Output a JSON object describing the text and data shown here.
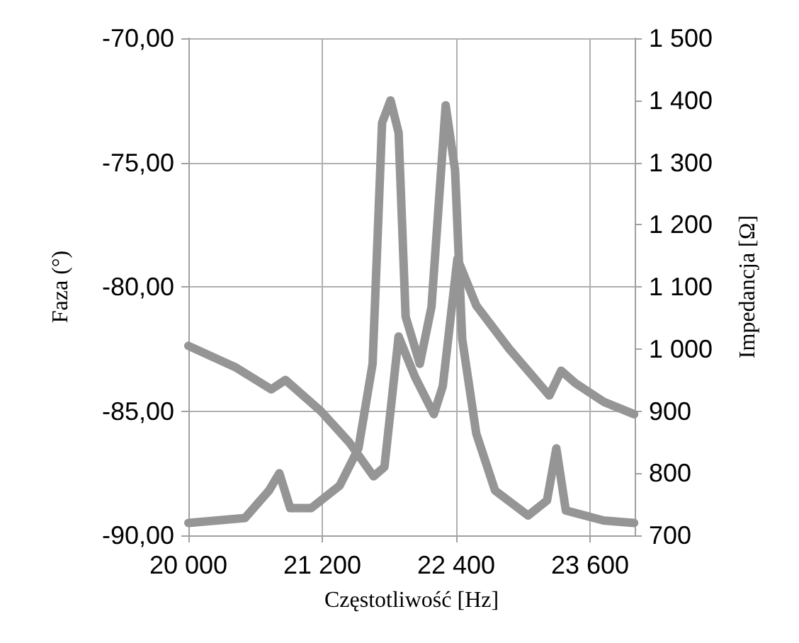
{
  "chart_data": {
    "type": "line",
    "xlabel": "Częstotliwość [Hz]",
    "ylabel": "Faza (°)",
    "y2label": "Impedancja [Ω]",
    "xlim": [
      20000,
      24000
    ],
    "xticks": [
      {
        "value": 20000,
        "label": "20 000"
      },
      {
        "value": 21200,
        "label": "21 200"
      },
      {
        "value": 22400,
        "label": "22 400"
      },
      {
        "value": 23600,
        "label": "23 600"
      }
    ],
    "ylim": [
      -90,
      -70
    ],
    "yticks": [
      {
        "value": -90,
        "label": "-90,00"
      },
      {
        "value": -85,
        "label": "-85,00"
      },
      {
        "value": -80,
        "label": "-80,00"
      },
      {
        "value": -75,
        "label": "-75,00"
      },
      {
        "value": -70,
        "label": "-70,00"
      }
    ],
    "y2lim": [
      700,
      1500
    ],
    "y2ticks": [
      {
        "value": 700,
        "label": "700"
      },
      {
        "value": 800,
        "label": "800"
      },
      {
        "value": 900,
        "label": "900"
      },
      {
        "value": 1000,
        "label": "1 000"
      },
      {
        "value": 1100,
        "label": "1 100"
      },
      {
        "value": 1200,
        "label": "1 200"
      },
      {
        "value": 1300,
        "label": "1 300"
      },
      {
        "value": 1400,
        "label": "1 400"
      },
      {
        "value": 1500,
        "label": "1 500"
      }
    ],
    "grid": true,
    "marker": "none",
    "line_style": "solid",
    "series": [
      {
        "color": "#959595",
        "x": [
          20000,
          20507,
          20722,
          20815,
          20912,
          21102,
          21356,
          21524,
          21651,
          21736,
          21812,
          21884,
          21947,
          22074,
          22179,
          22306,
          22390,
          22454,
          22580,
          22749,
          23045,
          23214,
          23298,
          23383,
          23721,
          23995
        ],
        "values": [
          -89.5,
          -89.3,
          -88.2,
          -87.5,
          -88.9,
          -88.9,
          -88.0,
          -86.5,
          -83.1,
          -73.4,
          -72.5,
          -73.8,
          -81.2,
          -83.1,
          -80.8,
          -72.7,
          -75.3,
          -82.1,
          -85.9,
          -88.2,
          -89.2,
          -88.6,
          -86.5,
          -89.0,
          -89.4,
          -89.5
        ]
      },
      {
        "color": "#959595",
        "axis": "y2",
        "x": [
          20000,
          20427,
          20743,
          20870,
          21187,
          21440,
          21660,
          21757,
          21884,
          22031,
          22200,
          22280,
          22411,
          22580,
          22876,
          23235,
          23341,
          23468,
          23721,
          23995
        ],
        "values": [
          1005,
          970,
          935,
          950,
          900,
          850,
          795,
          810,
          1020,
          955,
          895,
          940,
          1145,
          1070,
          1000,
          925,
          965,
          945,
          915,
          895
        ]
      }
    ]
  }
}
